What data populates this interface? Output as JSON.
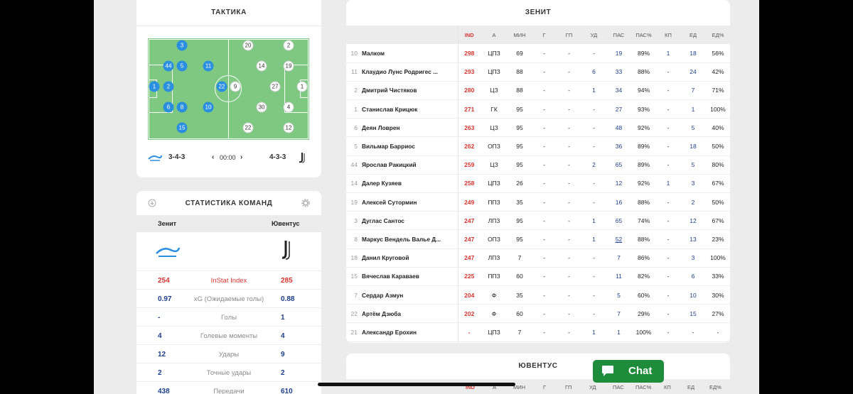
{
  "tactics": {
    "title": "ТАКТИКА",
    "home_formation": "3-4-3",
    "away_formation": "4-3-3",
    "time": "00:00",
    "home_players": [
      "3",
      "44",
      "5",
      "11",
      "1",
      "2",
      "22",
      "6",
      "8",
      "10",
      "15"
    ],
    "away_players": [
      "20",
      "2",
      "14",
      "19",
      "9",
      "27",
      "1",
      "30",
      "4",
      "22",
      "12"
    ]
  },
  "team_stats": {
    "title": "СТАТИСТИКА КОМАНД",
    "home_team": "Зенит",
    "away_team": "Ювентус",
    "rows": [
      {
        "home": "254",
        "label": "InStat Index",
        "away": "285"
      },
      {
        "home": "0.97",
        "label": "xG (Ожидаемые голы)",
        "away": "0.88"
      },
      {
        "home": "-",
        "label": "Голы",
        "away": "1"
      },
      {
        "home": "4",
        "label": "Голевые моменты",
        "away": "4"
      },
      {
        "home": "12",
        "label": "Удары",
        "away": "9"
      },
      {
        "home": "2",
        "label": "Точные удары",
        "away": "2"
      },
      {
        "home": "438",
        "label": "Передачи",
        "away": "610"
      }
    ]
  },
  "player_stats": {
    "home_title": "ЗЕНИТ",
    "away_title": "ЮВЕНТУС",
    "columns": [
      "IND",
      "А",
      "МИН",
      "Г",
      "ГП",
      "УД",
      "ПАС",
      "ПАС%",
      "КП",
      "ЕД",
      "ЕД%"
    ],
    "rows": [
      [
        "10",
        "Малком",
        "298",
        "ЦПЗ",
        "69",
        "-",
        "-",
        "-",
        "19",
        "89%",
        "1",
        "18",
        "56%"
      ],
      [
        "11",
        "Клаудио Лунс Родригес ...",
        "293",
        "ЦПЗ",
        "88",
        "-",
        "-",
        "6",
        "33",
        "88%",
        "-",
        "24",
        "42%"
      ],
      [
        "2",
        "Дмитрий Чистяков",
        "280",
        "ЦЗ",
        "88",
        "-",
        "-",
        "1",
        "34",
        "94%",
        "-",
        "7",
        "71%"
      ],
      [
        "1",
        "Станислав Крицюк",
        "271",
        "ГК",
        "95",
        "-",
        "-",
        "-",
        "27",
        "93%",
        "-",
        "1",
        "100%"
      ],
      [
        "6",
        "Деян Ловрен",
        "263",
        "ЦЗ",
        "95",
        "-",
        "-",
        "-",
        "48",
        "92%",
        "-",
        "5",
        "40%"
      ],
      [
        "5",
        "Вильмар Барриос",
        "262",
        "ОПЗ",
        "95",
        "-",
        "-",
        "-",
        "36",
        "89%",
        "-",
        "18",
        "50%"
      ],
      [
        "44",
        "Ярослав Ракицкий",
        "259",
        "ЦЗ",
        "95",
        "-",
        "-",
        "2",
        "65",
        "89%",
        "-",
        "5",
        "80%"
      ],
      [
        "14",
        "Далер Кузяев",
        "258",
        "ЦПЗ",
        "26",
        "-",
        "-",
        "-",
        "12",
        "92%",
        "1",
        "3",
        "67%"
      ],
      [
        "19",
        "Алексей Сутормин",
        "249",
        "ППЗ",
        "35",
        "-",
        "-",
        "-",
        "16",
        "88%",
        "-",
        "2",
        "50%"
      ],
      [
        "3",
        "Дуглас Сантос",
        "247",
        "ЛПЗ",
        "95",
        "-",
        "-",
        "1",
        "65",
        "74%",
        "-",
        "12",
        "67%"
      ],
      [
        "8",
        "Маркус Вендель Валье Д...",
        "247",
        "ОПЗ",
        "95",
        "-",
        "-",
        "1",
        "52",
        "88%",
        "-",
        "13",
        "23%"
      ],
      [
        "18",
        "Данил Круговой",
        "247",
        "ЛПЗ",
        "7",
        "-",
        "-",
        "-",
        "7",
        "86%",
        "-",
        "3",
        "100%"
      ],
      [
        "15",
        "Вячеслав Караваев",
        "225",
        "ППЗ",
        "60",
        "-",
        "-",
        "-",
        "11",
        "82%",
        "-",
        "6",
        "33%"
      ],
      [
        "7",
        "Сердар Азмун",
        "204",
        "Ф",
        "35",
        "-",
        "-",
        "-",
        "5",
        "60%",
        "-",
        "10",
        "30%"
      ],
      [
        "22",
        "Артём Дзюба",
        "202",
        "Ф",
        "60",
        "-",
        "-",
        "-",
        "7",
        "29%",
        "-",
        "15",
        "27%"
      ],
      [
        "21",
        "Александр Ерохин",
        "-",
        "ЦПЗ",
        "7",
        "-",
        "-",
        "1",
        "1",
        "100%",
        "-",
        "-",
        "-"
      ]
    ]
  },
  "chat": {
    "label": "Chat"
  },
  "colors": {
    "accent_red": "#d4352f",
    "link_blue": "#1d3f8a",
    "home_dot": "#2b8fe0",
    "pitch": "#7ec882",
    "chat_green": "#1e8c3a"
  }
}
